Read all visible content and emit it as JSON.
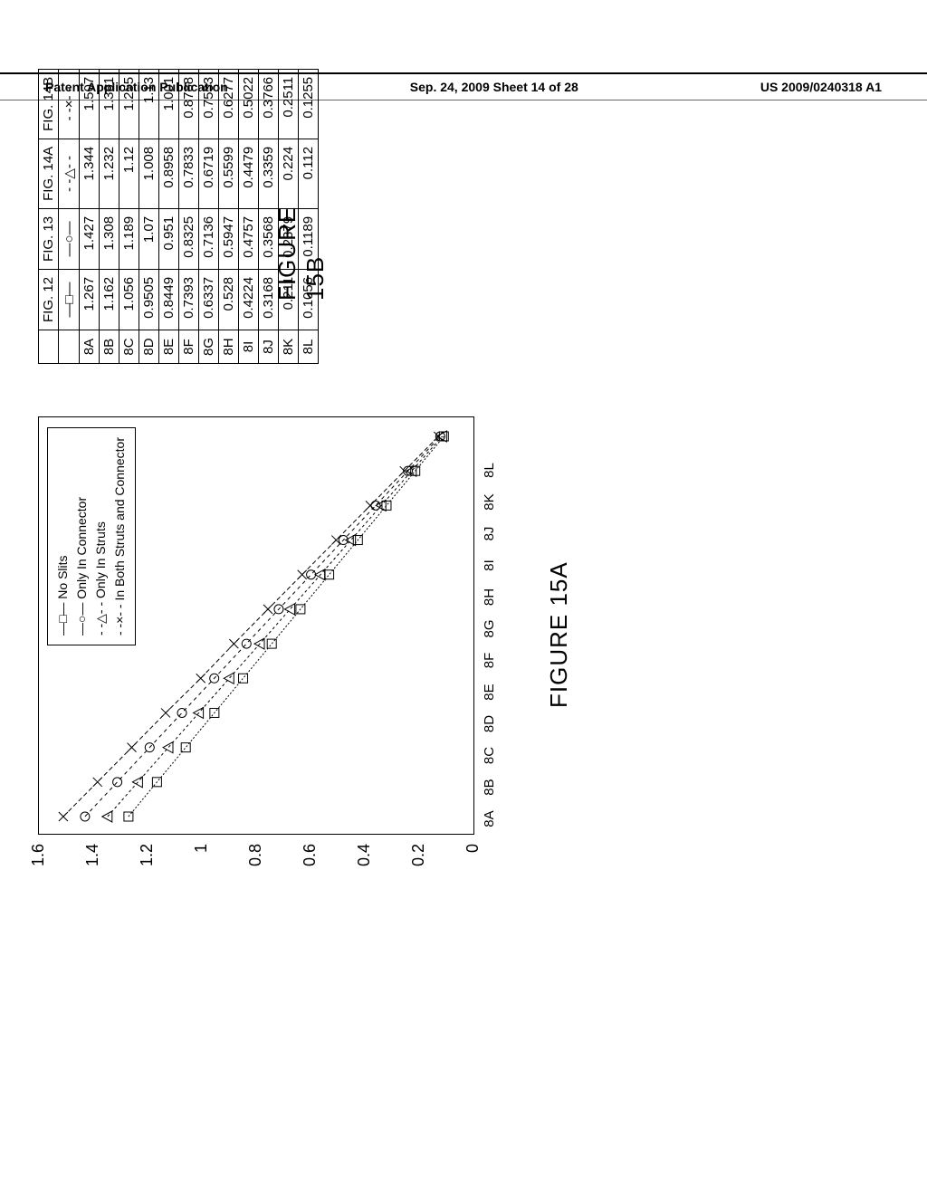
{
  "header": {
    "left": "Patent Application Publication",
    "mid": "Sep. 24, 2009  Sheet 14 of 28",
    "right": "US 2009/0240318 A1"
  },
  "chart": {
    "type": "line",
    "categories": [
      "8A",
      "8B",
      "8C",
      "8D",
      "8E",
      "8F",
      "8G",
      "8H",
      "8I",
      "8J",
      "8K",
      "8L"
    ],
    "ylim": [
      0,
      1.6
    ],
    "yticks": [
      "0",
      "0.2",
      "0.4",
      "0.6",
      "0.8",
      "1",
      "1.2",
      "1.4",
      "1.6"
    ],
    "series": [
      {
        "name": "No Slits",
        "marker": "square",
        "dash": "2,2",
        "values": [
          1.267,
          1.162,
          1.056,
          0.9505,
          0.8449,
          0.7393,
          0.6337,
          0.528,
          0.4224,
          0.3168,
          0.211,
          0.1056
        ]
      },
      {
        "name": "Only In Connector",
        "marker": "circle",
        "dash": "4,4",
        "values": [
          1.427,
          1.308,
          1.189,
          1.07,
          0.951,
          0.8325,
          0.7136,
          0.5947,
          0.4757,
          0.3568,
          0.2379,
          0.1189
        ]
      },
      {
        "name": "Only In Struts",
        "marker": "triangle",
        "dash": "3,3",
        "values": [
          1.344,
          1.232,
          1.12,
          1.008,
          0.8958,
          0.7833,
          0.6719,
          0.5599,
          0.4479,
          0.3359,
          0.224,
          0.112
        ]
      },
      {
        "name": "In Both Struts and Connector",
        "marker": "x",
        "dash": "5,3",
        "values": [
          1.507,
          1.381,
          1.255,
          1.13,
          1.001,
          0.8788,
          0.7533,
          0.6277,
          0.5022,
          0.3766,
          0.2511,
          0.1255
        ]
      }
    ],
    "legend_symbols": [
      "—□—",
      "—○—",
      "- -△- -",
      "- -×- -"
    ],
    "background_color": "#ffffff",
    "stroke_color": "#000000",
    "font_size_axis": 18
  },
  "table": {
    "columns": [
      "",
      "FIG. 12",
      "FIG. 13",
      "FIG. 14A",
      "FIG. 14B"
    ],
    "symbol_row": [
      "",
      "—□—",
      "—○—",
      "- -△- -",
      "- -×- -"
    ],
    "rows": [
      [
        "8A",
        "1.267",
        "1.427",
        "1.344",
        "1.507"
      ],
      [
        "8B",
        "1.162",
        "1.308",
        "1.232",
        "1.381"
      ],
      [
        "8C",
        "1.056",
        "1.189",
        "1.12",
        "1.255"
      ],
      [
        "8D",
        "0.9505",
        "1.07",
        "1.008",
        "1.13"
      ],
      [
        "8E",
        "0.8449",
        "0.951",
        "0.8958",
        "1.001"
      ],
      [
        "8F",
        "0.7393",
        "0.8325",
        "0.7833",
        "0.8788"
      ],
      [
        "8G",
        "0.6337",
        "0.7136",
        "0.6719",
        "0.7533"
      ],
      [
        "8H",
        "0.528",
        "0.5947",
        "0.5599",
        "0.6277"
      ],
      [
        "8I",
        "0.4224",
        "0.4757",
        "0.4479",
        "0.5022"
      ],
      [
        "8J",
        "0.3168",
        "0.3568",
        "0.3359",
        "0.3766"
      ],
      [
        "8K",
        "0.211",
        "0.2379",
        "0.224",
        "0.2511"
      ],
      [
        "8L",
        "0.1056",
        "0.1189",
        "0.112",
        "0.1255"
      ]
    ]
  },
  "labels": {
    "fig15a": "FIGURE 15A",
    "fig15b": "FIGURE 15B"
  }
}
